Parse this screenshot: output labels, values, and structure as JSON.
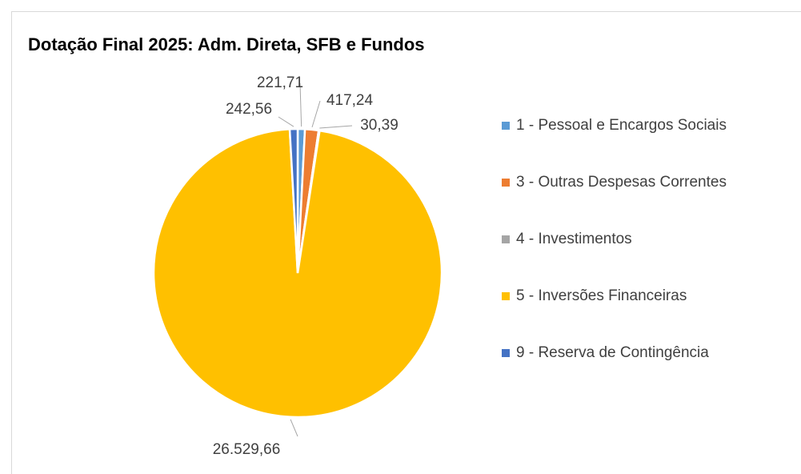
{
  "chart_data": {
    "type": "pie",
    "title": "Dotação Final 2025: Adm. Direta, SFB e Fundos",
    "categories": [
      "1 - Pessoal e Encargos Sociais",
      "3 - Outras Despesas Correntes",
      "4 - Investimentos",
      "5 - Inversões Financeiras",
      "9 - Reserva de Contingência"
    ],
    "values": [
      221.71,
      417.24,
      30.39,
      26529.66,
      242.56
    ],
    "value_labels": [
      "221,71",
      "417,24",
      "30,39",
      "26.529,66",
      "242,56"
    ],
    "colors": [
      "#5b9bd5",
      "#ed7d31",
      "#a5a5a5",
      "#ffc000",
      "#4472c4"
    ],
    "legend": "right"
  }
}
